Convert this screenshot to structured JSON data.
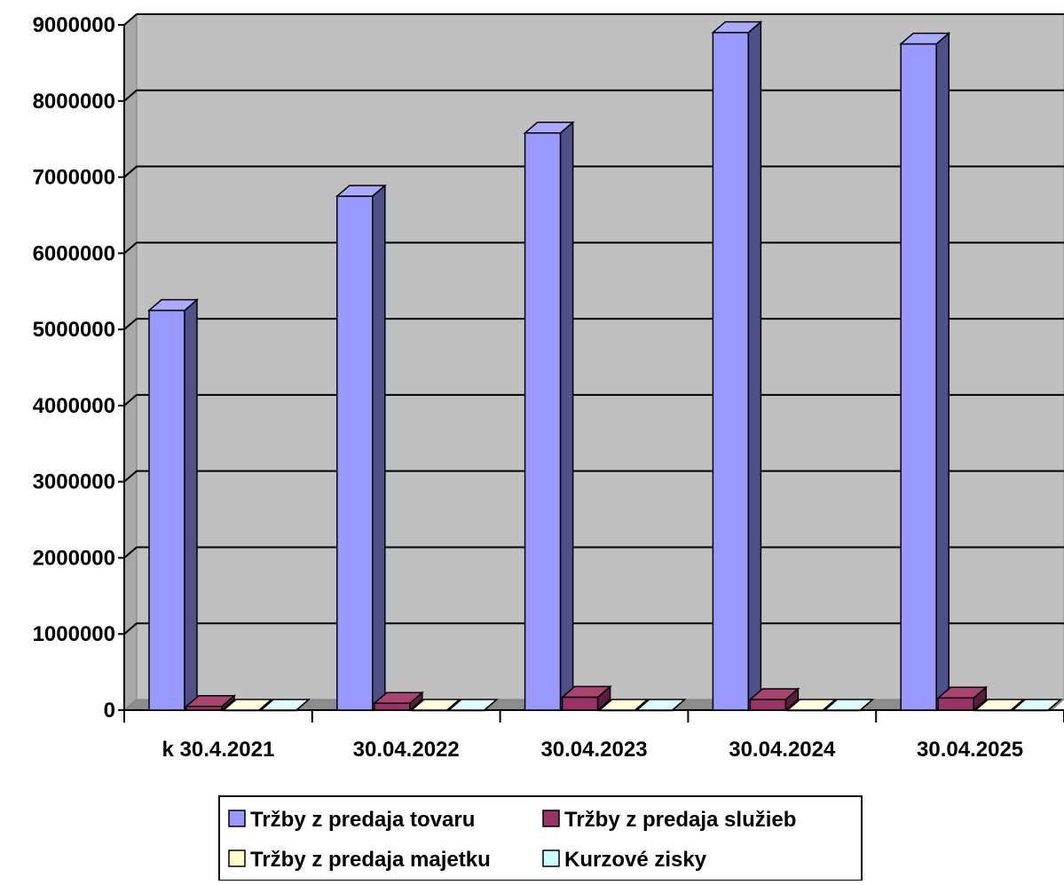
{
  "chart_data": {
    "type": "bar",
    "title": "",
    "xlabel": "",
    "ylabel": "",
    "categories": [
      "k 30.4.2021",
      "30.04.2022",
      "30.04.2023",
      "30.04.2024",
      "30.04.2025"
    ],
    "ylim": [
      0,
      9000000
    ],
    "yticks": [
      0,
      1000000,
      2000000,
      3000000,
      4000000,
      5000000,
      6000000,
      7000000,
      8000000,
      9000000
    ],
    "ytick_labels": [
      "0",
      "1000000",
      "2000000",
      "3000000",
      "4000000",
      "5000000",
      "6000000",
      "7000000",
      "8000000",
      "9000000"
    ],
    "grid": true,
    "legend_position": "bottom",
    "series": [
      {
        "name": "Tržby z predaja tovaru",
        "values": [
          5250000,
          6750000,
          7580000,
          8900000,
          8750000
        ],
        "color": "#9999ff",
        "side_color": "#4f4f8a",
        "top_color": "#aaaaff"
      },
      {
        "name": "Tržby z predaja služieb",
        "values": [
          50000,
          90000,
          170000,
          140000,
          160000
        ],
        "color": "#993366",
        "side_color": "#5a1e3c",
        "top_color": "#a8446f"
      },
      {
        "name": "Tržby z predaja majetku",
        "values": [
          0,
          0,
          0,
          0,
          0
        ],
        "color": "#ffffcc",
        "side_color": "#a0a080",
        "top_color": "#ffffdd"
      },
      {
        "name": "Kurzové zisky",
        "values": [
          0,
          0,
          0,
          0,
          0
        ],
        "color": "#ccffff",
        "side_color": "#80a0a0",
        "top_color": "#ddffff"
      }
    ]
  }
}
